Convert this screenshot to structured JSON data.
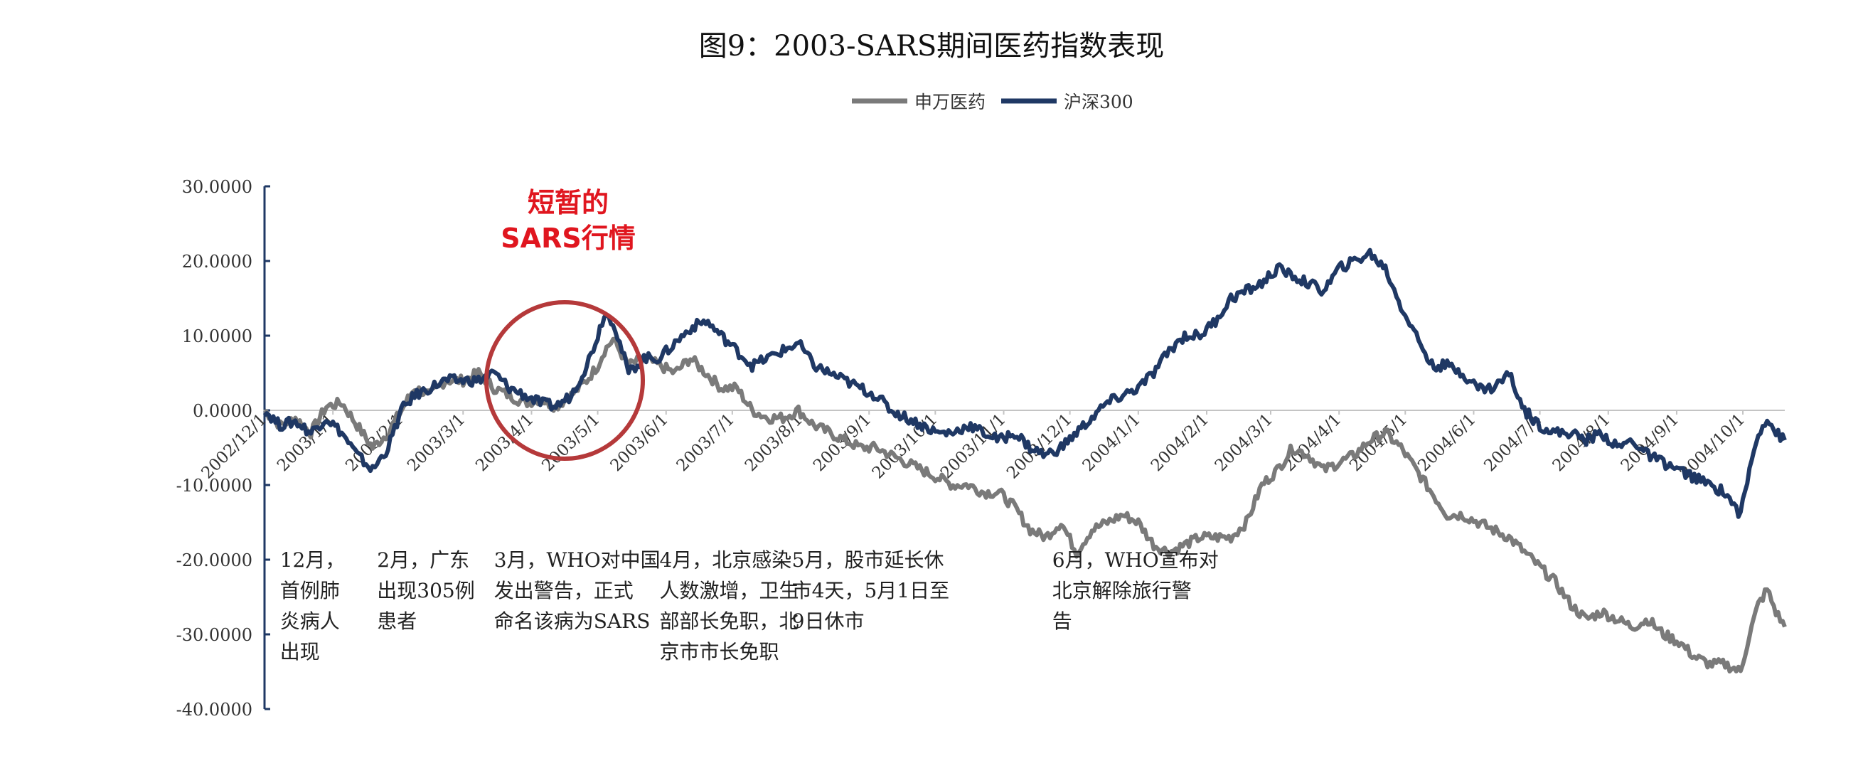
{
  "chart_data": {
    "type": "line",
    "title": "图9：2003-SARS期间医药指数表现",
    "legend_position": "top-center",
    "grid": false,
    "ylim": [
      -40,
      30
    ],
    "yticks": [
      30,
      20,
      10,
      0,
      -10,
      -20,
      -30,
      -40
    ],
    "ytick_labels": [
      "30.0000",
      "20.0000",
      "10.0000",
      "0.0000",
      "-10.0000",
      "-20.0000",
      "-30.0000",
      "-40.0000"
    ],
    "x_range": [
      "2002-12-01",
      "2004-10-20"
    ],
    "x_tick_labels": [
      "2002/12/1",
      "2003/1/1",
      "2003/2/1",
      "2003/3/1",
      "2003/4/1",
      "2003/5/1",
      "2003/6/1",
      "2003/7/1",
      "2003/8/1",
      "2003/9/1",
      "2003/10/1",
      "2003/11/1",
      "2003/12/1",
      "2004/1/1",
      "2004/2/1",
      "2004/3/1",
      "2004/4/1",
      "2004/5/1",
      "2004/6/1",
      "2004/7/1",
      "2004/8/1",
      "2004/9/1",
      "2004/10/1"
    ],
    "series": [
      {
        "name": "申万医药",
        "color": "#7a7a7a",
        "points": [
          [
            "2002-12-01",
            0
          ],
          [
            "2002-12-08",
            -2
          ],
          [
            "2002-12-15",
            -1
          ],
          [
            "2002-12-22",
            -3
          ],
          [
            "2002-12-29",
            0.5
          ],
          [
            "2003-01-05",
            1
          ],
          [
            "2003-01-12",
            -2
          ],
          [
            "2003-01-19",
            -5
          ],
          [
            "2003-01-26",
            -3
          ],
          [
            "2003-02-01",
            0
          ],
          [
            "2003-02-07",
            3
          ],
          [
            "2003-02-14",
            2
          ],
          [
            "2003-02-21",
            4
          ],
          [
            "2003-03-01",
            4
          ],
          [
            "2003-03-08",
            5
          ],
          [
            "2003-03-15",
            3
          ],
          [
            "2003-03-22",
            2
          ],
          [
            "2003-03-29",
            1
          ],
          [
            "2003-04-05",
            1.5
          ],
          [
            "2003-04-12",
            0.5
          ],
          [
            "2003-04-19",
            2
          ],
          [
            "2003-04-26",
            4
          ],
          [
            "2003-05-01",
            6
          ],
          [
            "2003-05-04",
            8
          ],
          [
            "2003-05-08",
            9.5
          ],
          [
            "2003-05-11",
            8
          ],
          [
            "2003-05-15",
            6
          ],
          [
            "2003-05-22",
            7
          ],
          [
            "2003-05-29",
            6
          ],
          [
            "2003-06-05",
            5
          ],
          [
            "2003-06-12",
            7
          ],
          [
            "2003-06-19",
            5
          ],
          [
            "2003-06-26",
            3
          ],
          [
            "2003-07-03",
            3
          ],
          [
            "2003-07-10",
            0
          ],
          [
            "2003-07-17",
            -1
          ],
          [
            "2003-07-24",
            -1
          ],
          [
            "2003-07-31",
            0
          ],
          [
            "2003-08-07",
            -2
          ],
          [
            "2003-08-14",
            -3
          ],
          [
            "2003-08-21",
            -4
          ],
          [
            "2003-08-28",
            -5
          ],
          [
            "2003-09-04",
            -5
          ],
          [
            "2003-09-11",
            -6
          ],
          [
            "2003-09-18",
            -7
          ],
          [
            "2003-09-25",
            -8
          ],
          [
            "2003-10-02",
            -9
          ],
          [
            "2003-10-09",
            -10
          ],
          [
            "2003-10-16",
            -10
          ],
          [
            "2003-10-23",
            -11
          ],
          [
            "2003-10-30",
            -11
          ],
          [
            "2003-11-06",
            -13
          ],
          [
            "2003-11-13",
            -16
          ],
          [
            "2003-11-20",
            -17
          ],
          [
            "2003-11-27",
            -15
          ],
          [
            "2003-12-04",
            -19
          ],
          [
            "2003-12-11",
            -16
          ],
          [
            "2003-12-18",
            -15
          ],
          [
            "2003-12-25",
            -14
          ],
          [
            "2004-01-01",
            -15
          ],
          [
            "2004-01-08",
            -18
          ],
          [
            "2004-01-15",
            -19
          ],
          [
            "2004-01-22",
            -18
          ],
          [
            "2004-01-29",
            -17
          ],
          [
            "2004-02-05",
            -17
          ],
          [
            "2004-02-12",
            -17
          ],
          [
            "2004-02-19",
            -15
          ],
          [
            "2004-02-26",
            -10
          ],
          [
            "2004-03-04",
            -8
          ],
          [
            "2004-03-11",
            -5
          ],
          [
            "2004-03-18",
            -6
          ],
          [
            "2004-03-25",
            -8
          ],
          [
            "2004-04-01",
            -7
          ],
          [
            "2004-04-08",
            -6
          ],
          [
            "2004-04-15",
            -4
          ],
          [
            "2004-04-22",
            -3
          ],
          [
            "2004-04-29",
            -5
          ],
          [
            "2004-05-06",
            -8
          ],
          [
            "2004-05-13",
            -11
          ],
          [
            "2004-05-20",
            -14
          ],
          [
            "2004-05-27",
            -14
          ],
          [
            "2004-06-03",
            -15
          ],
          [
            "2004-06-10",
            -16
          ],
          [
            "2004-06-17",
            -17
          ],
          [
            "2004-06-24",
            -19
          ],
          [
            "2004-07-01",
            -21
          ],
          [
            "2004-07-08",
            -23
          ],
          [
            "2004-07-15",
            -26
          ],
          [
            "2004-07-22",
            -28
          ],
          [
            "2004-07-29",
            -27
          ],
          [
            "2004-08-05",
            -28
          ],
          [
            "2004-08-12",
            -29
          ],
          [
            "2004-08-19",
            -28
          ],
          [
            "2004-08-26",
            -30
          ],
          [
            "2004-09-02",
            -31
          ],
          [
            "2004-09-09",
            -33
          ],
          [
            "2004-09-16",
            -34
          ],
          [
            "2004-09-23",
            -34
          ],
          [
            "2004-09-30",
            -35
          ],
          [
            "2004-10-04",
            -30
          ],
          [
            "2004-10-08",
            -26
          ],
          [
            "2004-10-12",
            -24
          ],
          [
            "2004-10-16",
            -27
          ],
          [
            "2004-10-20",
            -29
          ]
        ]
      },
      {
        "name": "沪深300",
        "color": "#1f3864",
        "points": [
          [
            "2002-12-01",
            0
          ],
          [
            "2002-12-08",
            -2
          ],
          [
            "2002-12-15",
            -1.5
          ],
          [
            "2002-12-22",
            -3
          ],
          [
            "2002-12-29",
            -1
          ],
          [
            "2003-01-05",
            -3
          ],
          [
            "2003-01-12",
            -6
          ],
          [
            "2003-01-19",
            -8
          ],
          [
            "2003-01-26",
            -5
          ],
          [
            "2003-02-01",
            0
          ],
          [
            "2003-02-07",
            2
          ],
          [
            "2003-02-14",
            3
          ],
          [
            "2003-02-21",
            4
          ],
          [
            "2003-03-01",
            4
          ],
          [
            "2003-03-08",
            4
          ],
          [
            "2003-03-15",
            5
          ],
          [
            "2003-03-22",
            3
          ],
          [
            "2003-03-29",
            2
          ],
          [
            "2003-04-05",
            1
          ],
          [
            "2003-04-12",
            0.5
          ],
          [
            "2003-04-19",
            2
          ],
          [
            "2003-04-26",
            6
          ],
          [
            "2003-05-01",
            10
          ],
          [
            "2003-05-04",
            13
          ],
          [
            "2003-05-08",
            12
          ],
          [
            "2003-05-11",
            9
          ],
          [
            "2003-05-15",
            5
          ],
          [
            "2003-05-22",
            7
          ],
          [
            "2003-05-29",
            7
          ],
          [
            "2003-06-05",
            9
          ],
          [
            "2003-06-12",
            11
          ],
          [
            "2003-06-19",
            12
          ],
          [
            "2003-06-26",
            10
          ],
          [
            "2003-07-03",
            8
          ],
          [
            "2003-07-10",
            6
          ],
          [
            "2003-07-17",
            7
          ],
          [
            "2003-07-24",
            8
          ],
          [
            "2003-07-31",
            9
          ],
          [
            "2003-08-07",
            6
          ],
          [
            "2003-08-14",
            5
          ],
          [
            "2003-08-21",
            4
          ],
          [
            "2003-08-28",
            3
          ],
          [
            "2003-09-04",
            2
          ],
          [
            "2003-09-11",
            0
          ],
          [
            "2003-09-18",
            -1
          ],
          [
            "2003-09-25",
            -2
          ],
          [
            "2003-10-02",
            -3
          ],
          [
            "2003-10-09",
            -3
          ],
          [
            "2003-10-16",
            -2
          ],
          [
            "2003-10-23",
            -3
          ],
          [
            "2003-10-30",
            -4
          ],
          [
            "2003-11-06",
            -3
          ],
          [
            "2003-11-13",
            -5
          ],
          [
            "2003-11-20",
            -6
          ],
          [
            "2003-11-27",
            -5
          ],
          [
            "2003-12-04",
            -3
          ],
          [
            "2003-12-11",
            -1
          ],
          [
            "2003-12-18",
            1
          ],
          [
            "2003-12-25",
            2
          ],
          [
            "2004-01-01",
            3
          ],
          [
            "2004-01-08",
            5
          ],
          [
            "2004-01-15",
            8
          ],
          [
            "2004-01-22",
            10
          ],
          [
            "2004-01-29",
            10
          ],
          [
            "2004-02-05",
            12
          ],
          [
            "2004-02-12",
            15
          ],
          [
            "2004-02-19",
            16
          ],
          [
            "2004-02-26",
            17
          ],
          [
            "2004-03-04",
            19
          ],
          [
            "2004-03-11",
            18
          ],
          [
            "2004-03-18",
            17
          ],
          [
            "2004-03-25",
            16
          ],
          [
            "2004-04-01",
            19
          ],
          [
            "2004-04-08",
            20
          ],
          [
            "2004-04-15",
            21
          ],
          [
            "2004-04-22",
            19
          ],
          [
            "2004-04-29",
            14
          ],
          [
            "2004-05-06",
            10
          ],
          [
            "2004-05-13",
            6
          ],
          [
            "2004-05-20",
            6
          ],
          [
            "2004-05-27",
            5
          ],
          [
            "2004-06-03",
            3
          ],
          [
            "2004-06-10",
            3
          ],
          [
            "2004-06-17",
            5
          ],
          [
            "2004-06-24",
            0
          ],
          [
            "2004-07-01",
            -2
          ],
          [
            "2004-07-08",
            -3
          ],
          [
            "2004-07-15",
            -3
          ],
          [
            "2004-07-22",
            -4
          ],
          [
            "2004-07-29",
            -3
          ],
          [
            "2004-08-05",
            -5
          ],
          [
            "2004-08-12",
            -4
          ],
          [
            "2004-08-19",
            -6
          ],
          [
            "2004-08-26",
            -7
          ],
          [
            "2004-09-02",
            -8
          ],
          [
            "2004-09-09",
            -9
          ],
          [
            "2004-09-16",
            -10
          ],
          [
            "2004-09-23",
            -11
          ],
          [
            "2004-09-30",
            -14
          ],
          [
            "2004-10-04",
            -8
          ],
          [
            "2004-10-08",
            -3
          ],
          [
            "2004-10-12",
            -1
          ],
          [
            "2004-10-16",
            -3
          ],
          [
            "2004-10-20",
            -4
          ]
        ]
      }
    ],
    "annotations": {
      "callout": {
        "lines": [
          "短暂的",
          "SARS行情"
        ],
        "color": "#e0161f",
        "circle_color": "#b5393a",
        "circle_center": [
          "2003-04-16",
          4
        ]
      },
      "notes": [
        {
          "at": "2002-12-08",
          "lines": [
            "12月，",
            "首例肺",
            "炎病人",
            "出现"
          ]
        },
        {
          "at": "2003-01-21",
          "lines": [
            "2月，广东",
            "出现305例",
            "患者"
          ]
        },
        {
          "at": "2003-03-15",
          "lines": [
            "3月，WHO对中国",
            "发出警告，正式",
            "命名该病为SARS"
          ]
        },
        {
          "at": "2003-05-29",
          "lines": [
            "4月，北京感染",
            "人数激增，卫生",
            "部部长免职，北",
            "京市市长免职"
          ]
        },
        {
          "at": "2003-07-28",
          "lines": [
            "5月，股市延长休",
            "市4天，5月1日至",
            "9日休市"
          ]
        },
        {
          "at": "2003-11-23",
          "lines": [
            "6月，WHO宣布对",
            "北京解除旅行警",
            "告"
          ]
        }
      ]
    }
  }
}
